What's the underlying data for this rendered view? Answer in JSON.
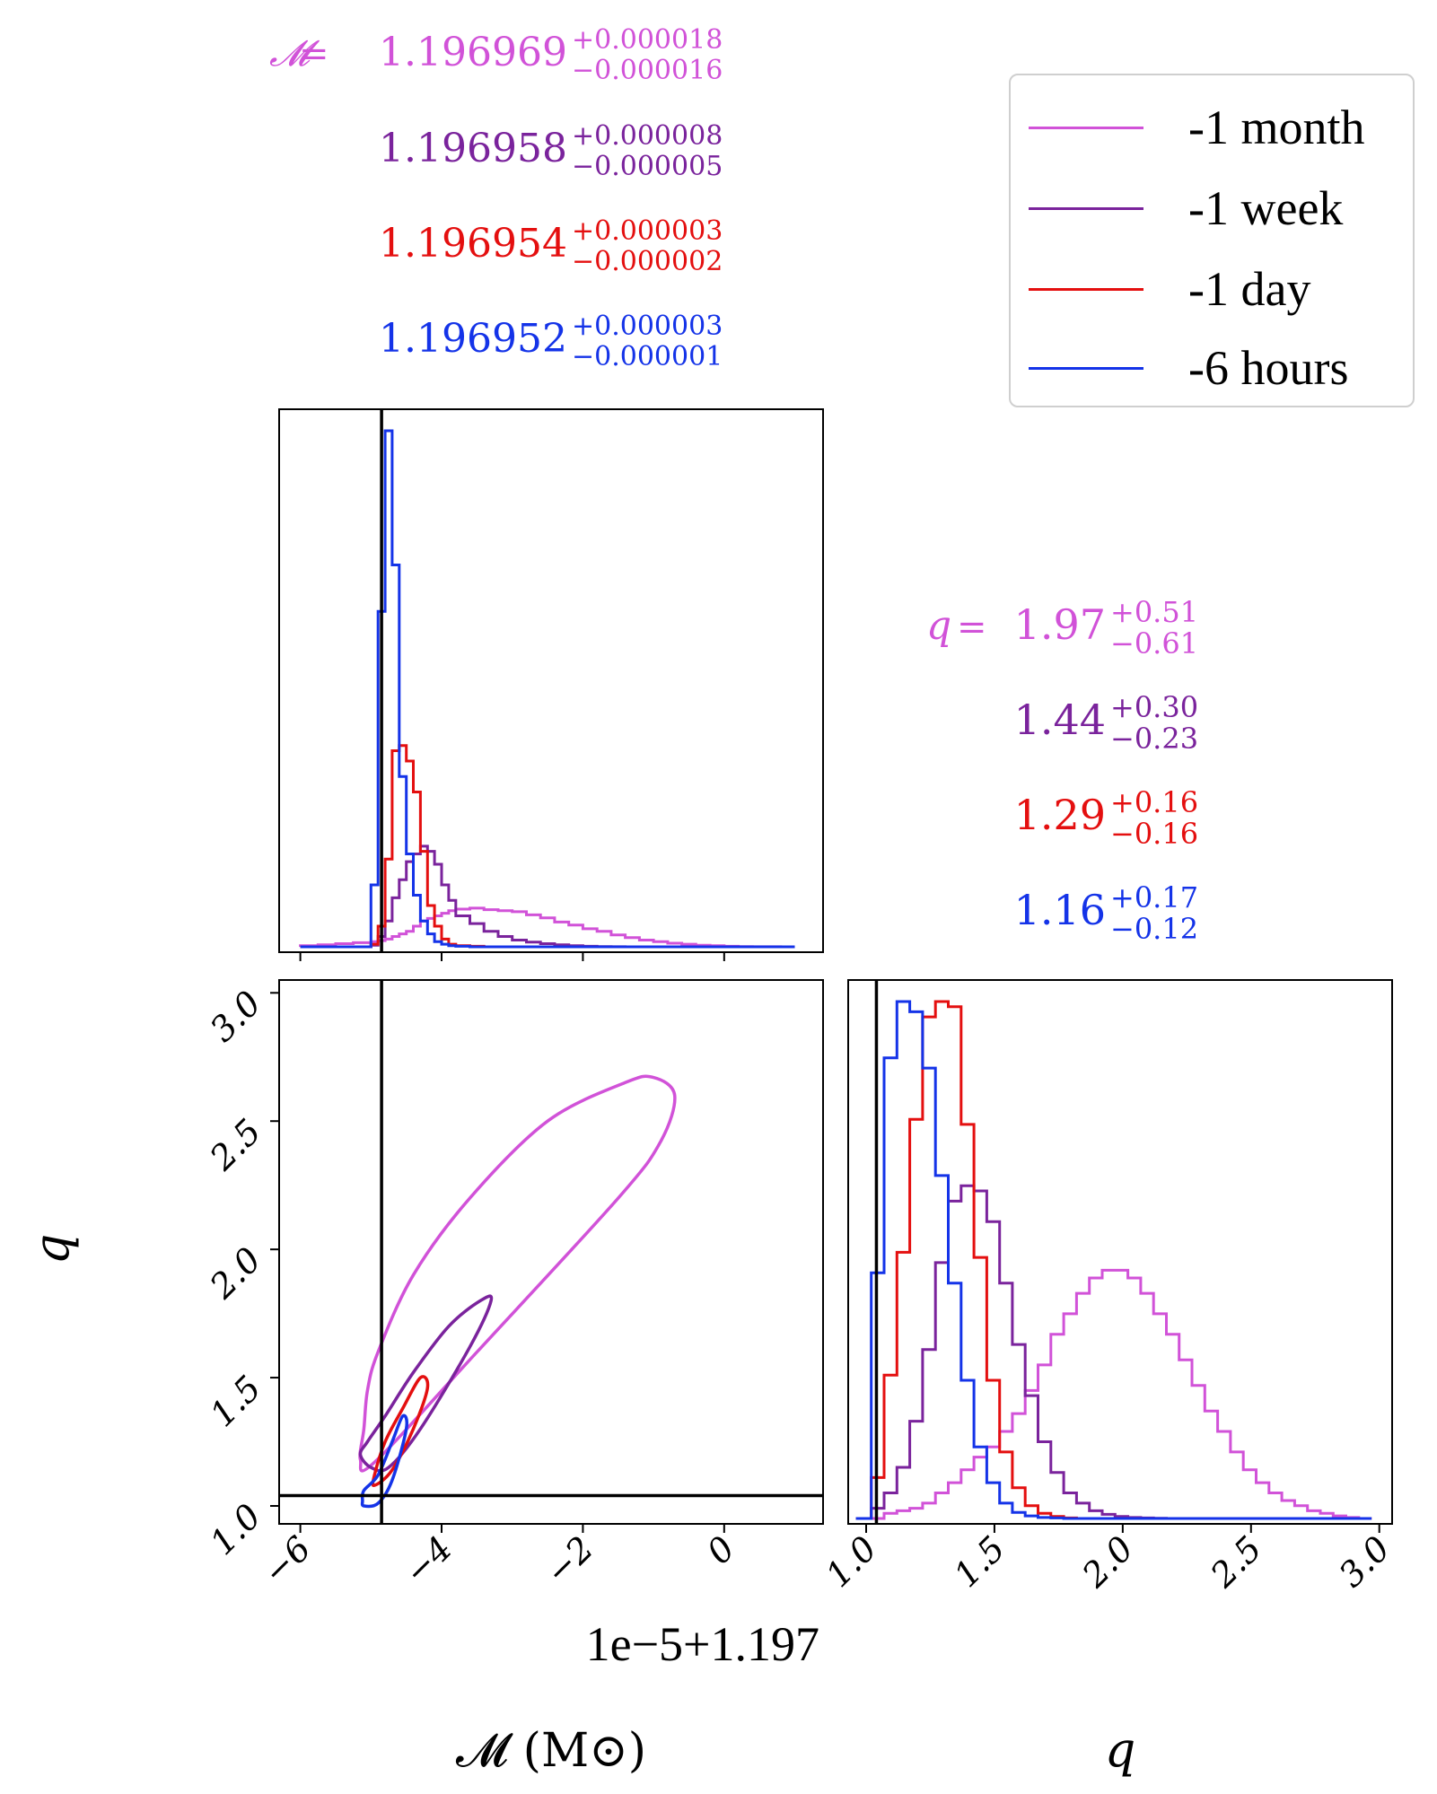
{
  "colors": {
    "month": "#d152d8",
    "week": "#7a239c",
    "day": "#e40f0f",
    "hours": "#1433e8",
    "truth": "#000000"
  },
  "legend": {
    "entries": [
      {
        "label": "-1 month",
        "color": "#d152d8"
      },
      {
        "label": "-1 week",
        "color": "#7a239c"
      },
      {
        "label": "-1 day",
        "color": "#e40f0f"
      },
      {
        "label": "-6 hours",
        "color": "#1433e8"
      }
    ]
  },
  "titles": {
    "mc_symbol": "𝓜",
    "q_symbol": "q",
    "eq": "=",
    "mc": [
      {
        "value": "1.196969",
        "plus": "+0.000018",
        "minus": "−0.000016",
        "color": "#d152d8"
      },
      {
        "value": "1.196958",
        "plus": "+0.000008",
        "minus": "−0.000005",
        "color": "#7a239c"
      },
      {
        "value": "1.196954",
        "plus": "+0.000003",
        "minus": "−0.000002",
        "color": "#e40f0f"
      },
      {
        "value": "1.196952",
        "plus": "+0.000003",
        "minus": "−0.000001",
        "color": "#1433e8"
      }
    ],
    "q": [
      {
        "value": "1.97",
        "plus": "+0.51",
        "minus": "−0.61",
        "color": "#d152d8"
      },
      {
        "value": "1.44",
        "plus": "+0.30",
        "minus": "−0.23",
        "color": "#7a239c"
      },
      {
        "value": "1.29",
        "plus": "+0.16",
        "minus": "−0.16",
        "color": "#e40f0f"
      },
      {
        "value": "1.16",
        "plus": "+0.17",
        "minus": "−0.12",
        "color": "#1433e8"
      }
    ]
  },
  "axes": {
    "x_label": "𝓜 (M⊙)",
    "y_label": "q",
    "q_x_label": "q",
    "offset_text": "1e−5+1.197",
    "mc_ticks": [
      {
        "v": -6,
        "label": "−6"
      },
      {
        "v": -4,
        "label": "−4"
      },
      {
        "v": -2,
        "label": "−2"
      },
      {
        "v": 0,
        "label": "0"
      }
    ],
    "q_ticks": [
      {
        "v": 1.0,
        "label": "1.0"
      },
      {
        "v": 1.5,
        "label": "1.5"
      },
      {
        "v": 2.0,
        "label": "2.0"
      },
      {
        "v": 2.5,
        "label": "2.5"
      },
      {
        "v": 3.0,
        "label": "3.0"
      }
    ]
  },
  "chart_data": {
    "type": "corner",
    "params": [
      "chirp mass (offset 1e-5 units from 1.197)",
      "mass ratio q"
    ],
    "mc_range": [
      -6.3,
      1.4
    ],
    "q_range": [
      0.93,
      3.05
    ],
    "truth": {
      "mc": -4.85,
      "q": 1.04
    },
    "mc_hist": {
      "bins": [
        -6.0,
        -5.75,
        -5.5,
        -5.25,
        -5.0,
        -4.9,
        -4.8,
        -4.7,
        -4.6,
        -4.5,
        -4.4,
        -4.3,
        -4.2,
        -4.1,
        -4.0,
        -3.9,
        -3.8,
        -3.6,
        -3.4,
        -3.2,
        -3.0,
        -2.8,
        -2.6,
        -2.4,
        -2.2,
        -2.0,
        -1.8,
        -1.6,
        -1.4,
        -1.2,
        -1.0,
        -0.8,
        -0.6,
        -0.4,
        -0.2,
        0.0,
        0.2,
        0.4,
        0.6,
        0.8,
        1.0
      ],
      "series": [
        {
          "name": "-1 month",
          "values": [
            0.2,
            0.4,
            0.6,
            0.8,
            1.0,
            1.2,
            1.5,
            2.0,
            2.5,
            3.0,
            4.0,
            5.0,
            5.5,
            6.0,
            6.5,
            7.0,
            7.3,
            7.5,
            7.2,
            7.0,
            6.8,
            6.2,
            5.6,
            4.8,
            4.2,
            3.5,
            3.0,
            2.3,
            1.8,
            1.3,
            1.0,
            0.7,
            0.5,
            0.3,
            0.2,
            0.1,
            0.05,
            0.02,
            0.01,
            0.0
          ]
        },
        {
          "name": "-1 week",
          "values": [
            0,
            0,
            0,
            0,
            0.3,
            2.0,
            5.0,
            9.5,
            13.0,
            16.5,
            18.0,
            19.5,
            18.5,
            16.0,
            12.0,
            9.0,
            6.0,
            4.5,
            3.0,
            2.0,
            1.3,
            0.9,
            0.6,
            0.4,
            0.2,
            0.1,
            0.05,
            0.02,
            0,
            0,
            0,
            0,
            0,
            0,
            0,
            0,
            0,
            0,
            0,
            0
          ]
        },
        {
          "name": "-1 day",
          "values": [
            0,
            0,
            0,
            0,
            0.5,
            4.0,
            17.0,
            38.0,
            39.0,
            36.0,
            30.0,
            18.5,
            8.0,
            4.0,
            1.5,
            0.5,
            0.2,
            0.1,
            0,
            0,
            0,
            0,
            0,
            0,
            0,
            0,
            0,
            0,
            0,
            0,
            0,
            0,
            0,
            0,
            0,
            0,
            0,
            0,
            0,
            0
          ]
        },
        {
          "name": "-6 hours",
          "values": [
            0,
            0,
            0,
            0,
            12.0,
            65.0,
            100.0,
            74.0,
            33.0,
            18.0,
            10.0,
            5.0,
            2.5,
            1.0,
            0.5,
            0.2,
            0.1,
            0,
            0,
            0,
            0,
            0,
            0,
            0,
            0,
            0,
            0,
            0,
            0,
            0,
            0,
            0,
            0,
            0,
            0,
            0,
            0,
            0,
            0,
            0
          ]
        }
      ]
    },
    "q_hist": {
      "bins": [
        0.96,
        1.02,
        1.07,
        1.12,
        1.17,
        1.22,
        1.27,
        1.32,
        1.37,
        1.42,
        1.47,
        1.52,
        1.57,
        1.62,
        1.67,
        1.72,
        1.77,
        1.82,
        1.87,
        1.92,
        1.97,
        2.02,
        2.07,
        2.12,
        2.17,
        2.22,
        2.27,
        2.32,
        2.37,
        2.42,
        2.47,
        2.52,
        2.57,
        2.62,
        2.67,
        2.72,
        2.77,
        2.82,
        2.87,
        2.92,
        2.97
      ],
      "series": [
        {
          "name": "-1 month",
          "values": [
            0.0,
            0.0,
            1.0,
            1.5,
            2.0,
            3.0,
            5.0,
            7.0,
            9.5,
            12.0,
            14.0,
            17.0,
            20.5,
            25.0,
            30.0,
            36.0,
            40.0,
            44.0,
            47.0,
            48.5,
            48.5,
            47.0,
            44.0,
            40.0,
            36.0,
            31.0,
            26.0,
            21.0,
            17.0,
            13.0,
            9.5,
            7.0,
            5.0,
            3.5,
            2.5,
            1.5,
            1.0,
            0.5,
            0.2,
            0.0
          ]
        },
        {
          "name": "-1 week",
          "values": [
            0,
            2.0,
            5.0,
            10.0,
            19.0,
            33.0,
            50.0,
            62.0,
            65.0,
            64.0,
            58.0,
            46.0,
            34.0,
            24.0,
            15.0,
            9.0,
            5.0,
            3.0,
            1.5,
            0.8,
            0.4,
            0.2,
            0.1,
            0.05,
            0,
            0,
            0,
            0,
            0,
            0,
            0,
            0,
            0,
            0,
            0,
            0,
            0,
            0,
            0,
            0
          ]
        },
        {
          "name": "-1 day",
          "values": [
            0,
            8.0,
            28.0,
            52.0,
            78.0,
            98.0,
            101.0,
            100.0,
            77.0,
            51.0,
            27.0,
            13.0,
            6.0,
            2.5,
            1.0,
            0.4,
            0.1,
            0,
            0,
            0,
            0,
            0,
            0,
            0,
            0,
            0,
            0,
            0,
            0,
            0,
            0,
            0,
            0,
            0,
            0,
            0,
            0,
            0,
            0,
            0
          ]
        },
        {
          "name": "-6 hours",
          "values": [
            0,
            48.0,
            90.0,
            101.0,
            99.0,
            88.0,
            67.0,
            46.0,
            27.0,
            14.0,
            7.0,
            3.0,
            1.2,
            0.5,
            0.2,
            0.1,
            0,
            0,
            0,
            0,
            0,
            0,
            0,
            0,
            0,
            0,
            0,
            0,
            0,
            0,
            0,
            0,
            0,
            0,
            0,
            0,
            0,
            0,
            0,
            0
          ]
        }
      ]
    },
    "contours": [
      {
        "name": "-1 month",
        "points": [
          [
            -5.1,
            1.3
          ],
          [
            -5.15,
            1.18
          ],
          [
            -4.95,
            1.17
          ],
          [
            -3.5,
            1.6
          ],
          [
            -1.5,
            2.2
          ],
          [
            -0.9,
            2.42
          ],
          [
            -0.7,
            2.6
          ],
          [
            -1.0,
            2.67
          ],
          [
            -1.4,
            2.65
          ],
          [
            -2.5,
            2.5
          ],
          [
            -3.6,
            2.2
          ],
          [
            -4.4,
            1.9
          ],
          [
            -4.9,
            1.6
          ],
          [
            -5.05,
            1.45
          ],
          [
            -5.1,
            1.3
          ]
        ]
      },
      {
        "name": "-1 week",
        "points": [
          [
            -5.15,
            1.2
          ],
          [
            -5.0,
            1.15
          ],
          [
            -4.75,
            1.15
          ],
          [
            -4.3,
            1.3
          ],
          [
            -3.6,
            1.62
          ],
          [
            -3.3,
            1.8
          ],
          [
            -3.45,
            1.8
          ],
          [
            -3.9,
            1.7
          ],
          [
            -4.4,
            1.52
          ],
          [
            -4.8,
            1.35
          ],
          [
            -5.05,
            1.25
          ],
          [
            -5.15,
            1.2
          ]
        ]
      },
      {
        "name": "-1 day",
        "points": [
          [
            -4.95,
            1.08
          ],
          [
            -4.7,
            1.14
          ],
          [
            -4.4,
            1.3
          ],
          [
            -4.2,
            1.46
          ],
          [
            -4.3,
            1.5
          ],
          [
            -4.55,
            1.38
          ],
          [
            -4.8,
            1.25
          ],
          [
            -4.95,
            1.12
          ],
          [
            -4.95,
            1.08
          ]
        ]
      },
      {
        "name": "-6 hours",
        "points": [
          [
            -5.1,
            1.0
          ],
          [
            -4.9,
            1.01
          ],
          [
            -4.7,
            1.1
          ],
          [
            -4.5,
            1.3
          ],
          [
            -4.55,
            1.35
          ],
          [
            -4.7,
            1.25
          ],
          [
            -4.9,
            1.12
          ],
          [
            -5.1,
            1.06
          ],
          [
            -5.12,
            1.02
          ],
          [
            -5.1,
            1.0
          ]
        ]
      }
    ]
  }
}
